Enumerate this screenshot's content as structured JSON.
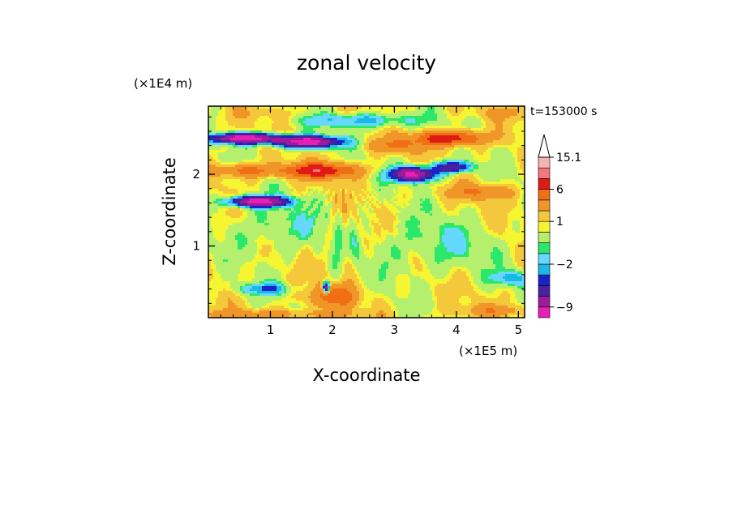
{
  "chart_data": {
    "type": "heatmap",
    "title": "zonal velocity",
    "xlabel": "X-coordinate",
    "ylabel": "Z-coordinate",
    "x_unit": "(×1E5 m)",
    "y_unit": "(×1E4 m)",
    "time_label": "t=153000 s",
    "xlim": [
      0,
      5.1
    ],
    "ylim": [
      0,
      2.95
    ],
    "x_ticks": [
      1,
      2,
      3,
      4,
      5
    ],
    "y_ticks": [
      1,
      2
    ],
    "x_tick_labels": [
      "1",
      "2",
      "3",
      "4",
      "5"
    ],
    "y_tick_labels": [
      "1",
      "2"
    ],
    "colorbar": {
      "levels": [
        -12,
        -9,
        -6,
        -4,
        -3,
        -2,
        -1,
        -0.5,
        0.5,
        1,
        2,
        4,
        6,
        9,
        12,
        15.1
      ],
      "colors": [
        "#e81fb4",
        "#9c1a9c",
        "#4a22a0",
        "#1a22c8",
        "#1ab8e6",
        "#64d8ff",
        "#2ce86a",
        "#b4f06e",
        "#f5f532",
        "#f5c83c",
        "#f09628",
        "#f06e14",
        "#e01a14",
        "#f07878",
        "#f5b4b4"
      ],
      "labels": [
        {
          "value": 15.1,
          "text": "15.1"
        },
        {
          "value": 6,
          "text": "6"
        },
        {
          "value": 1,
          "text": "1"
        },
        {
          "value": -2,
          "text": "−2"
        },
        {
          "value": -9,
          "text": "−9"
        }
      ],
      "extend": "max"
    },
    "features": [
      {
        "x": 0.6,
        "z": 2.5,
        "sx": 0.55,
        "sz": 0.07,
        "v": -11
      },
      {
        "x": 1.6,
        "z": 2.45,
        "sx": 0.5,
        "sz": 0.08,
        "v": -11
      },
      {
        "x": 3.3,
        "z": 2.0,
        "sx": 0.35,
        "sz": 0.1,
        "v": -10
      },
      {
        "x": 3.95,
        "z": 2.1,
        "sx": 0.3,
        "sz": 0.08,
        "v": -6
      },
      {
        "x": 0.8,
        "z": 1.62,
        "sx": 0.45,
        "sz": 0.07,
        "v": -11
      },
      {
        "x": 1.8,
        "z": 2.05,
        "sx": 0.6,
        "sz": 0.1,
        "v": 8
      },
      {
        "x": 0.6,
        "z": 2.05,
        "sx": 0.5,
        "sz": 0.09,
        "v": 5
      },
      {
        "x": 3.9,
        "z": 2.5,
        "sx": 0.55,
        "sz": 0.1,
        "v": 8
      },
      {
        "x": 3.0,
        "z": 2.4,
        "sx": 0.4,
        "sz": 0.1,
        "v": 4
      },
      {
        "x": 4.4,
        "z": 1.75,
        "sx": 0.5,
        "sz": 0.1,
        "v": 4
      },
      {
        "x": 2.0,
        "z": 0.3,
        "sx": 0.4,
        "sz": 0.15,
        "v": 5
      },
      {
        "x": 1.1,
        "z": 0.05,
        "sx": 1.2,
        "sz": 0.07,
        "v": 3
      },
      {
        "x": 4.6,
        "z": 0.1,
        "sx": 0.6,
        "sz": 0.08,
        "v": 3
      },
      {
        "x": 0.9,
        "z": 0.4,
        "sx": 0.45,
        "sz": 0.08,
        "v": -2.5
      },
      {
        "x": 4.9,
        "z": 0.55,
        "sx": 0.3,
        "sz": 0.1,
        "v": -2.5
      },
      {
        "x": 1.9,
        "z": 0.42,
        "sx": 0.05,
        "sz": 0.08,
        "v": -10
      },
      {
        "x": 1.1,
        "z": 1.25,
        "sx": 0.8,
        "sz": 0.35,
        "v": -0.8
      },
      {
        "x": 3.6,
        "z": 1.0,
        "sx": 1.0,
        "sz": 0.4,
        "v": -0.8
      },
      {
        "x": 2.5,
        "z": 2.75,
        "sx": 0.9,
        "sz": 0.1,
        "v": -2.5
      },
      {
        "x": 4.7,
        "z": 2.85,
        "sx": 0.4,
        "sz": 0.08,
        "v": 2
      },
      {
        "x": 1.0,
        "z": 2.85,
        "sx": 0.7,
        "sz": 0.08,
        "v": 1.5
      }
    ]
  }
}
